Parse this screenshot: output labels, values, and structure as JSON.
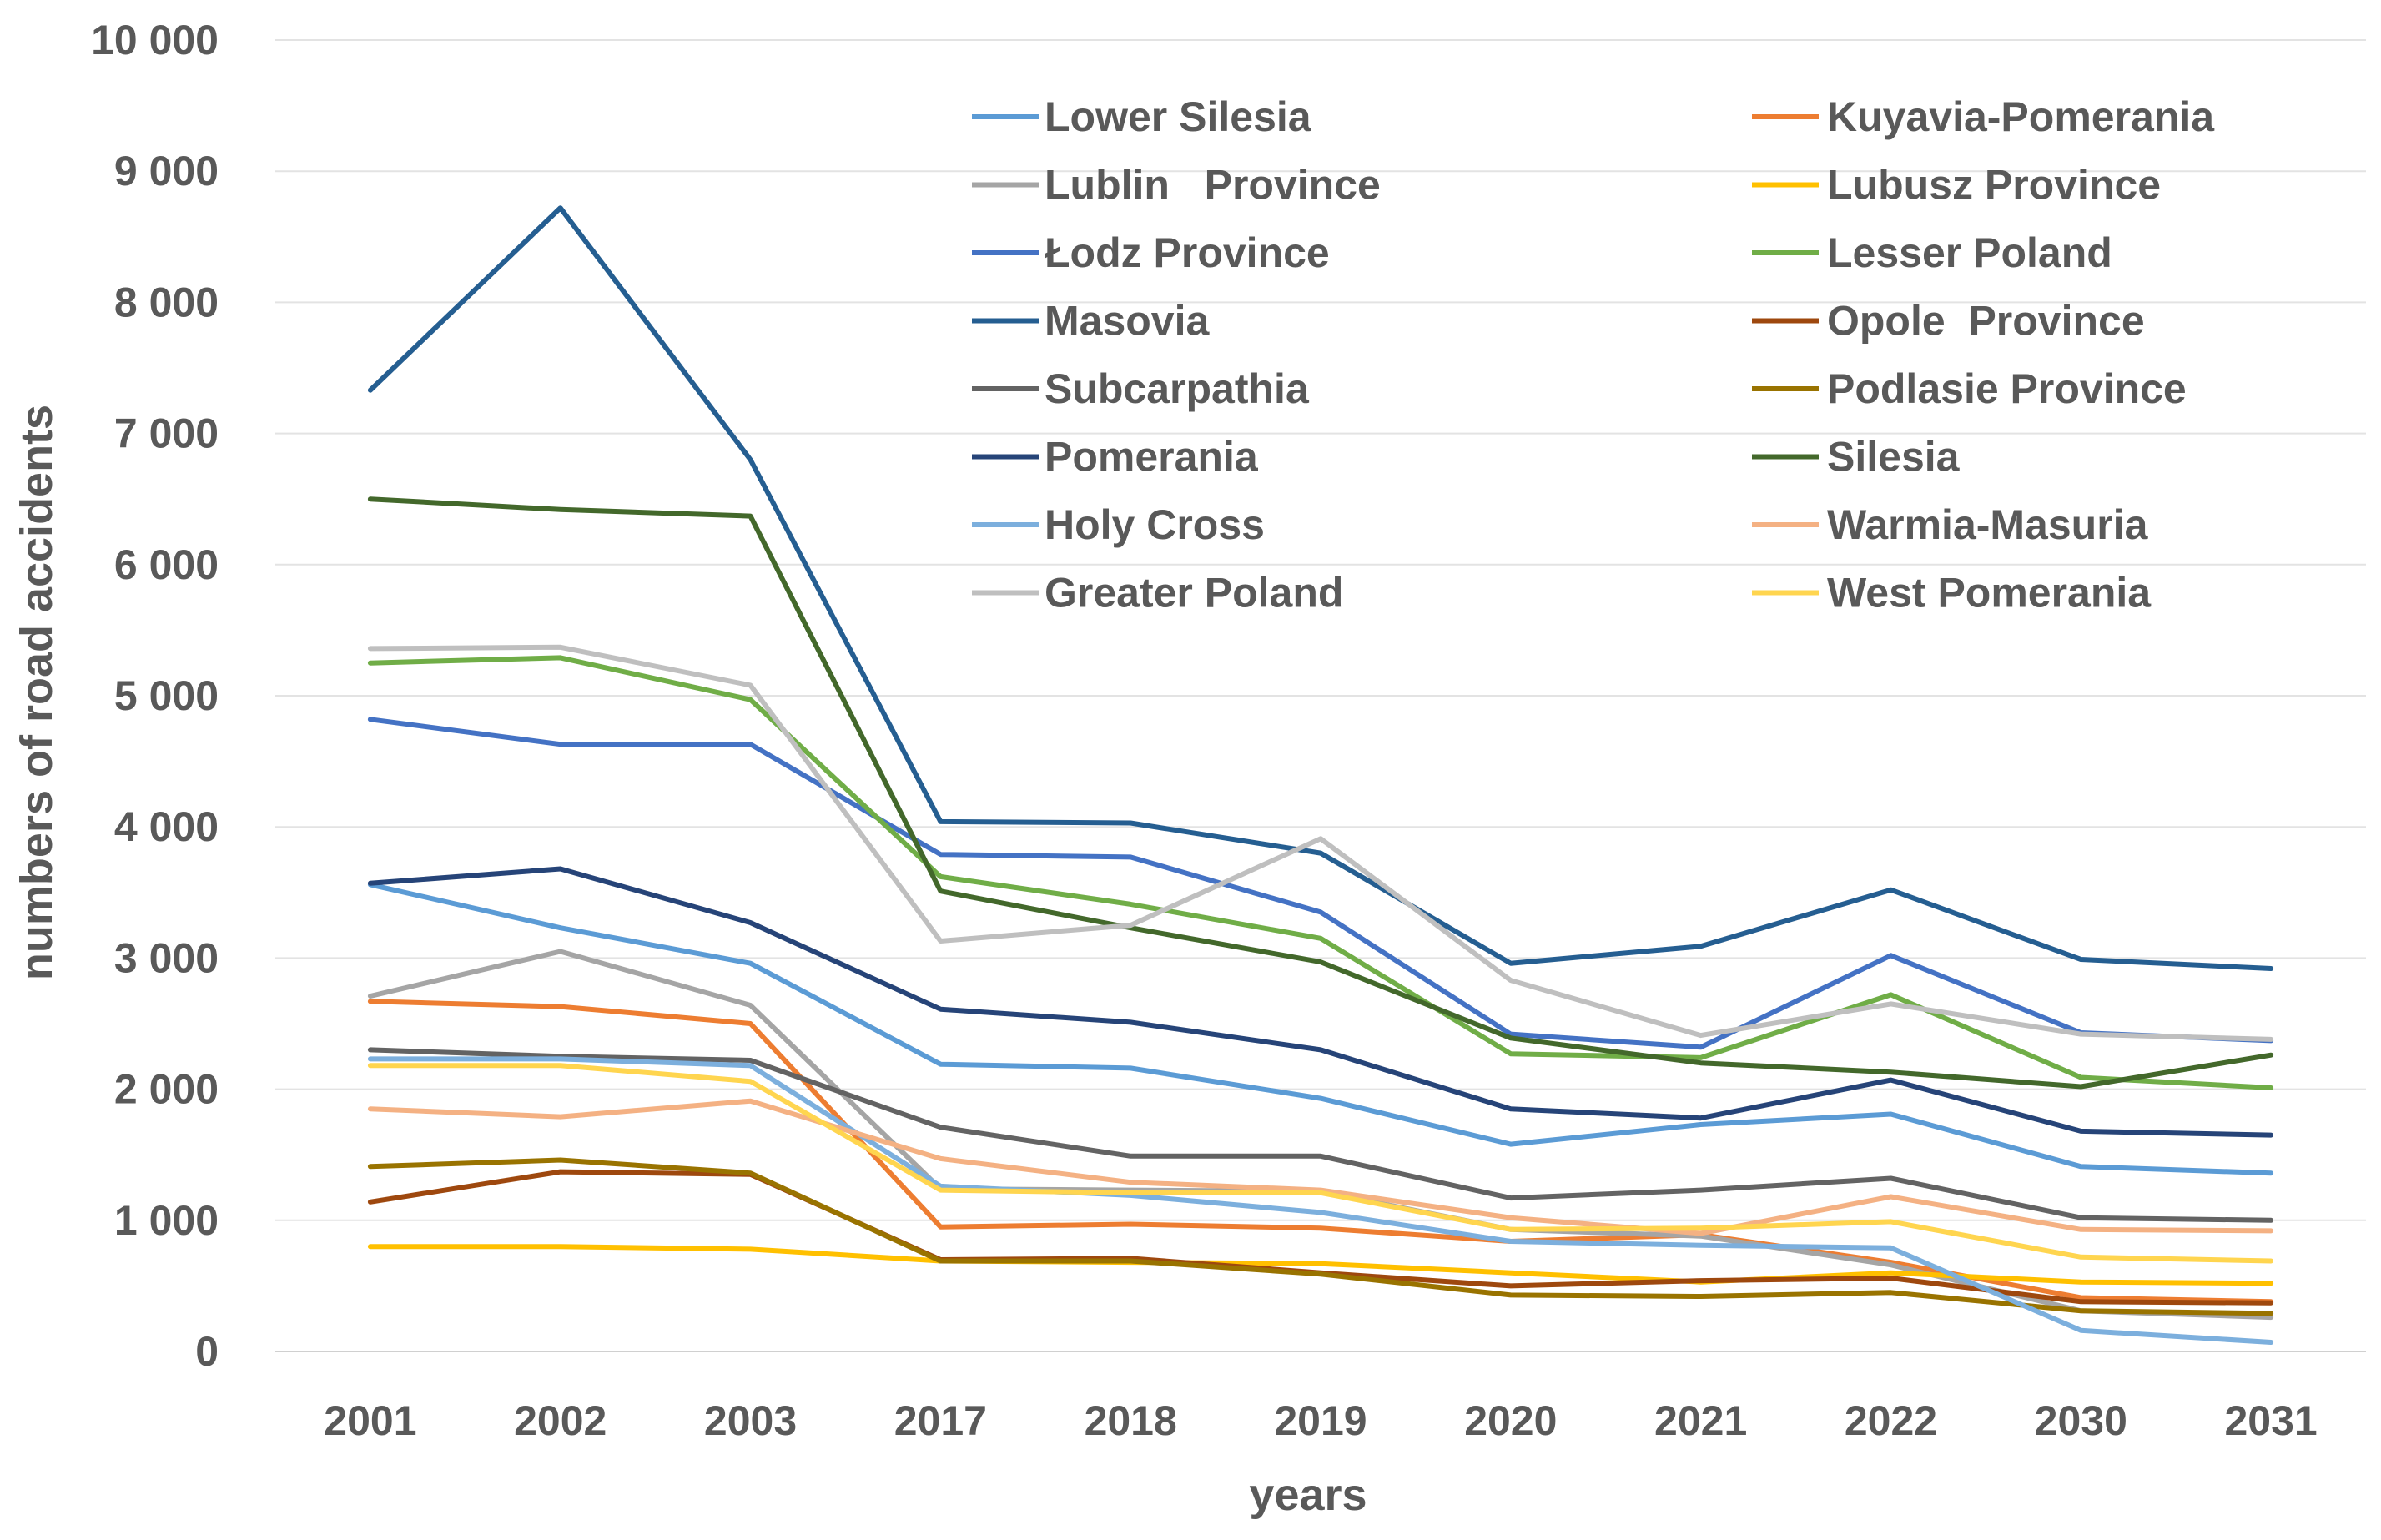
{
  "chart_data": {
    "type": "line",
    "title": "",
    "xlabel": "years",
    "ylabel": "numbers of road accidents",
    "ylim": [
      0,
      10000
    ],
    "yticks": [
      0,
      1000,
      2000,
      3000,
      4000,
      5000,
      6000,
      7000,
      8000,
      9000,
      10000
    ],
    "ytick_labels": [
      "0",
      "1 000",
      "2 000",
      "3 000",
      "4 000",
      "5 000",
      "6 000",
      "7 000",
      "8 000",
      "9 000",
      "10 000"
    ],
    "categories": [
      "2001",
      "2002",
      "2003",
      "2017",
      "2018",
      "2019",
      "2020",
      "2021",
      "2022",
      "2030",
      "2031"
    ],
    "grid": true,
    "legend_position": "top-right",
    "series": [
      {
        "name": "Lower Silesia",
        "color": "#5B9BD5",
        "values": [
          3560,
          3230,
          2960,
          2190,
          2160,
          1930,
          1580,
          1730,
          1810,
          1410,
          1360
        ]
      },
      {
        "name": "Kuyavia-Pomerania",
        "color": "#ED7D31",
        "values": [
          2670,
          2630,
          2500,
          950,
          970,
          940,
          840,
          890,
          680,
          410,
          380
        ]
      },
      {
        "name": "Lublin   Province",
        "color": "#A5A5A5",
        "values": [
          2710,
          3050,
          2640,
          1240,
          1230,
          1220,
          930,
          880,
          660,
          310,
          260
        ]
      },
      {
        "name": "Lubusz Province",
        "color": "#FFC000",
        "values": [
          800,
          800,
          780,
          690,
          680,
          670,
          600,
          530,
          600,
          530,
          520
        ]
      },
      {
        "name": "Łodz Province",
        "color": "#4472C4",
        "values": [
          4820,
          4630,
          4630,
          3790,
          3770,
          3350,
          2420,
          2320,
          3020,
          2430,
          2370
        ]
      },
      {
        "name": "Lesser Poland",
        "color": "#70AD47",
        "values": [
          5250,
          5290,
          4970,
          3620,
          3410,
          3150,
          2270,
          2240,
          2720,
          2090,
          2010
        ]
      },
      {
        "name": "Masovia",
        "color": "#255E91",
        "values": [
          7330,
          8720,
          6800,
          4040,
          4030,
          3800,
          2960,
          3090,
          3520,
          2990,
          2920
        ]
      },
      {
        "name": "Opole  Province",
        "color": "#9E480E",
        "values": [
          1140,
          1370,
          1350,
          700,
          710,
          600,
          500,
          540,
          560,
          380,
          370
        ]
      },
      {
        "name": "Subcarpathia",
        "color": "#636363",
        "values": [
          2300,
          2250,
          2220,
          1710,
          1490,
          1490,
          1170,
          1230,
          1320,
          1020,
          1000
        ]
      },
      {
        "name": "Podlasie Province",
        "color": "#997300",
        "values": [
          1410,
          1460,
          1360,
          690,
          690,
          590,
          430,
          420,
          450,
          310,
          290
        ]
      },
      {
        "name": "Pomerania",
        "color": "#264478",
        "values": [
          3570,
          3680,
          3270,
          2610,
          2510,
          2300,
          1850,
          1780,
          2070,
          1680,
          1650
        ]
      },
      {
        "name": "Silesia",
        "color": "#43682B",
        "values": [
          6500,
          6420,
          6370,
          3510,
          3230,
          2970,
          2390,
          2200,
          2130,
          2020,
          2260
        ]
      },
      {
        "name": "Holy Cross",
        "color": "#7CAFDD",
        "values": [
          2230,
          2230,
          2180,
          1260,
          1190,
          1060,
          840,
          810,
          790,
          160,
          70
        ]
      },
      {
        "name": "Warmia-Masuria",
        "color": "#F4B183",
        "values": [
          1850,
          1790,
          1910,
          1470,
          1290,
          1230,
          1020,
          900,
          1180,
          930,
          920
        ]
      },
      {
        "name": "Greater Poland",
        "color": "#BFBFBF",
        "values": [
          5360,
          5370,
          5080,
          3130,
          3250,
          3910,
          2830,
          2410,
          2650,
          2420,
          2380
        ]
      },
      {
        "name": "West Pomerania",
        "color": "#FFD54F",
        "values": [
          2180,
          2180,
          2060,
          1230,
          1210,
          1210,
          930,
          940,
          990,
          720,
          690
        ]
      }
    ]
  }
}
